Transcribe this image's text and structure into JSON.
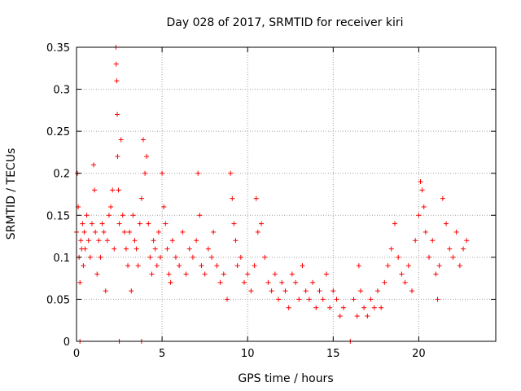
{
  "chart_data": {
    "type": "scatter",
    "title": "Day 028 of 2017, SRMTID for receiver kiri",
    "xlabel": "GPS time / hours",
    "ylabel": "SRMTID / TECUs",
    "xlim": [
      0,
      24.5
    ],
    "ylim": [
      0,
      0.35
    ],
    "xticks": [
      0,
      5,
      10,
      15,
      20
    ],
    "yticks": [
      0,
      0.05,
      0.1,
      0.15,
      0.2,
      0.25,
      0.3,
      0.35
    ],
    "ytick_labels": [
      "0",
      "0.05",
      "0.1",
      "0.15",
      "0.2",
      "0.25",
      "0.3",
      "0.35"
    ],
    "grid": true,
    "marker": "+",
    "color": "#ff0000",
    "series": [
      {
        "name": "SRMTID",
        "points": [
          [
            0.0,
            0.13
          ],
          [
            0.05,
            0.2
          ],
          [
            0.1,
            0.16
          ],
          [
            0.15,
            0.1
          ],
          [
            0.2,
            0.07
          ],
          [
            0.25,
            0.12
          ],
          [
            0.3,
            0.11
          ],
          [
            0.35,
            0.14
          ],
          [
            0.4,
            0.09
          ],
          [
            0.45,
            0.13
          ],
          [
            0.5,
            0.11
          ],
          [
            0.6,
            0.15
          ],
          [
            0.7,
            0.12
          ],
          [
            0.8,
            0.1
          ],
          [
            0.9,
            0.14
          ],
          [
            1.0,
            0.21
          ],
          [
            1.05,
            0.18
          ],
          [
            1.1,
            0.13
          ],
          [
            1.2,
            0.08
          ],
          [
            1.3,
            0.12
          ],
          [
            1.4,
            0.1
          ],
          [
            1.5,
            0.14
          ],
          [
            1.6,
            0.13
          ],
          [
            1.7,
            0.06
          ],
          [
            1.8,
            0.12
          ],
          [
            1.9,
            0.15
          ],
          [
            2.0,
            0.16
          ],
          [
            2.1,
            0.18
          ],
          [
            2.2,
            0.11
          ],
          [
            2.3,
            0.35
          ],
          [
            2.32,
            0.33
          ],
          [
            2.35,
            0.31
          ],
          [
            2.38,
            0.27
          ],
          [
            2.4,
            0.22
          ],
          [
            2.45,
            0.18
          ],
          [
            2.5,
            0.14
          ],
          [
            2.6,
            0.24
          ],
          [
            2.7,
            0.15
          ],
          [
            2.8,
            0.13
          ],
          [
            2.9,
            0.11
          ],
          [
            3.0,
            0.09
          ],
          [
            3.1,
            0.13
          ],
          [
            3.2,
            0.06
          ],
          [
            3.3,
            0.15
          ],
          [
            3.4,
            0.12
          ],
          [
            3.5,
            0.11
          ],
          [
            3.6,
            0.09
          ],
          [
            3.7,
            0.14
          ],
          [
            3.8,
            0.17
          ],
          [
            3.9,
            0.24
          ],
          [
            4.0,
            0.2
          ],
          [
            4.1,
            0.22
          ],
          [
            4.2,
            0.14
          ],
          [
            4.3,
            0.1
          ],
          [
            4.4,
            0.08
          ],
          [
            4.5,
            0.12
          ],
          [
            4.6,
            0.11
          ],
          [
            4.7,
            0.09
          ],
          [
            4.8,
            0.13
          ],
          [
            4.9,
            0.1
          ],
          [
            5.0,
            0.2
          ],
          [
            5.1,
            0.16
          ],
          [
            5.2,
            0.14
          ],
          [
            5.3,
            0.11
          ],
          [
            5.4,
            0.08
          ],
          [
            5.5,
            0.07
          ],
          [
            5.6,
            0.12
          ],
          [
            5.8,
            0.1
          ],
          [
            6.0,
            0.09
          ],
          [
            6.2,
            0.13
          ],
          [
            6.4,
            0.08
          ],
          [
            6.6,
            0.11
          ],
          [
            6.8,
            0.1
          ],
          [
            7.0,
            0.12
          ],
          [
            7.1,
            0.2
          ],
          [
            7.2,
            0.15
          ],
          [
            7.3,
            0.09
          ],
          [
            7.5,
            0.08
          ],
          [
            7.7,
            0.11
          ],
          [
            7.9,
            0.1
          ],
          [
            8.0,
            0.13
          ],
          [
            8.2,
            0.09
          ],
          [
            8.4,
            0.07
          ],
          [
            8.6,
            0.08
          ],
          [
            8.8,
            0.05
          ],
          [
            9.0,
            0.2
          ],
          [
            9.1,
            0.17
          ],
          [
            9.2,
            0.14
          ],
          [
            9.3,
            0.12
          ],
          [
            9.4,
            0.09
          ],
          [
            9.6,
            0.1
          ],
          [
            9.8,
            0.07
          ],
          [
            10.0,
            0.08
          ],
          [
            10.2,
            0.06
          ],
          [
            10.4,
            0.09
          ],
          [
            10.5,
            0.17
          ],
          [
            10.6,
            0.13
          ],
          [
            10.8,
            0.14
          ],
          [
            11.0,
            0.1
          ],
          [
            11.2,
            0.07
          ],
          [
            11.4,
            0.06
          ],
          [
            11.6,
            0.08
          ],
          [
            11.8,
            0.05
          ],
          [
            12.0,
            0.07
          ],
          [
            12.2,
            0.06
          ],
          [
            12.4,
            0.04
          ],
          [
            12.6,
            0.08
          ],
          [
            12.8,
            0.07
          ],
          [
            13.0,
            0.05
          ],
          [
            13.2,
            0.09
          ],
          [
            13.4,
            0.06
          ],
          [
            13.6,
            0.05
          ],
          [
            13.8,
            0.07
          ],
          [
            14.0,
            0.04
          ],
          [
            14.2,
            0.06
          ],
          [
            14.4,
            0.05
          ],
          [
            14.6,
            0.08
          ],
          [
            14.8,
            0.04
          ],
          [
            15.0,
            0.06
          ],
          [
            15.2,
            0.05
          ],
          [
            15.4,
            0.03
          ],
          [
            15.6,
            0.04
          ],
          [
            16.2,
            0.05
          ],
          [
            16.4,
            0.03
          ],
          [
            16.5,
            0.09
          ],
          [
            16.6,
            0.06
          ],
          [
            16.8,
            0.04
          ],
          [
            17.0,
            0.03
          ],
          [
            17.2,
            0.05
          ],
          [
            17.4,
            0.04
          ],
          [
            17.6,
            0.06
          ],
          [
            17.8,
            0.04
          ],
          [
            18.0,
            0.07
          ],
          [
            18.2,
            0.09
          ],
          [
            18.4,
            0.11
          ],
          [
            18.6,
            0.14
          ],
          [
            18.8,
            0.1
          ],
          [
            19.0,
            0.08
          ],
          [
            19.2,
            0.07
          ],
          [
            19.4,
            0.09
          ],
          [
            19.6,
            0.06
          ],
          [
            19.8,
            0.12
          ],
          [
            20.0,
            0.15
          ],
          [
            20.1,
            0.19
          ],
          [
            20.2,
            0.18
          ],
          [
            20.3,
            0.16
          ],
          [
            20.4,
            0.13
          ],
          [
            20.6,
            0.1
          ],
          [
            20.8,
            0.12
          ],
          [
            21.0,
            0.08
          ],
          [
            21.1,
            0.05
          ],
          [
            21.2,
            0.09
          ],
          [
            21.4,
            0.17
          ],
          [
            21.6,
            0.14
          ],
          [
            21.8,
            0.11
          ],
          [
            22.0,
            0.1
          ],
          [
            22.2,
            0.13
          ],
          [
            22.4,
            0.09
          ],
          [
            22.6,
            0.11
          ],
          [
            22.8,
            0.12
          ]
        ],
        "zero_markers": [
          0.2,
          2.5,
          3.8,
          16.0
        ]
      }
    ]
  }
}
